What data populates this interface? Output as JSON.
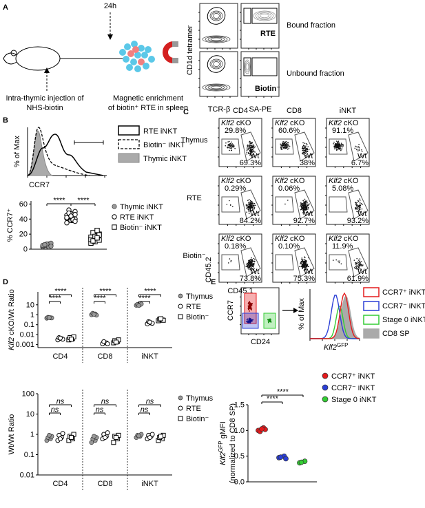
{
  "panel_a": {
    "letter": "A",
    "time": "24h",
    "injection": [
      "Intra-thymic injection of",
      "NHS-biotin"
    ],
    "enrichment": [
      "Magnetic enrichment",
      "of biotin⁺ RTE in spleen"
    ],
    "y_axis": "CD1d tetramer",
    "x_axes": [
      "TCR-β",
      "SA-PE"
    ],
    "gates": [
      "RTE",
      "Biotin⁻"
    ],
    "fractions": [
      "Bound fraction",
      "Unbound fraction"
    ]
  },
  "panel_b": {
    "letter": "B",
    "histogram": {
      "y_axis": "% of Max",
      "x_axis": "CCR7",
      "legend": [
        "RTE iNKT",
        "Biotin⁻ iNKT",
        "Thymic iNKT"
      ]
    },
    "dotplot": {
      "ylabel": "% CCR7⁺",
      "ylim": [
        0,
        64
      ],
      "yticks": [
        0,
        20,
        40,
        60
      ],
      "groups": [
        {
          "name": "Thymic iNKT",
          "marker": "filled",
          "color": "#999999",
          "values": [
            3,
            4,
            5,
            6,
            7,
            4,
            5,
            8,
            6,
            3,
            5,
            7,
            4,
            6
          ]
        },
        {
          "name": "RTE iNKT",
          "marker": "open-circle",
          "color": "#000000",
          "values": [
            35,
            38,
            40,
            42,
            44,
            45,
            47,
            50,
            52,
            38,
            41,
            43,
            46,
            48,
            39,
            42,
            44,
            37
          ]
        },
        {
          "name": "Biotin⁻ iNKT",
          "marker": "open-square",
          "color": "#000000",
          "values": [
            8,
            10,
            12,
            14,
            15,
            16,
            18,
            20,
            22,
            25,
            13,
            17,
            19,
            11,
            15
          ]
        }
      ],
      "sig": [
        "****",
        "****"
      ]
    }
  },
  "panel_c": {
    "letter": "C",
    "columns": [
      "CD4",
      "CD8",
      "iNKT"
    ],
    "rows": [
      "Thymus",
      "RTE",
      "Biotin⁻"
    ],
    "gate_name": "Klf2",
    "gate_suffix": " cKO",
    "wt": "Wt",
    "ko_pct": [
      [
        "29.8%",
        "60.6%",
        "91.1%"
      ],
      [
        "0.29%",
        "0.06%",
        "5.08%"
      ],
      [
        "0.18%",
        "0.10%",
        "11.9%"
      ]
    ],
    "wt_pct": [
      [
        "69.3%",
        "38%",
        "6.7%"
      ],
      [
        "84.2%",
        "92.7%",
        "93.2%"
      ],
      [
        "73.8%",
        "75.3%",
        "61.9%"
      ]
    ],
    "y_axis": "CD45.2",
    "x_axis": "CD45.1"
  },
  "panel_d": {
    "letter": "D",
    "categories": [
      "CD4",
      "CD8",
      "iNKT"
    ],
    "ratio": {
      "ylabel_italic": "Klf2",
      "ylabel_rest": " cKO/Wt Ratio",
      "log": true,
      "ylim": [
        0.0005,
        200
      ],
      "yticks": [
        10,
        1,
        0.1,
        0.01,
        0.001
      ],
      "series": [
        {
          "name": "Thymus",
          "marker": "filled",
          "color": "#999999",
          "values": [
            [
              0.45,
              0.5,
              0.55,
              0.48,
              0.52
            ],
            [
              1.0,
              1.2,
              1.4,
              0.9,
              1.1
            ],
            [
              9,
              10,
              11,
              12,
              8.5
            ]
          ]
        },
        {
          "name": "RTE",
          "marker": "open-circle",
          "color": "#000000",
          "values": [
            [
              0.003,
              0.004,
              0.005,
              0.0035,
              0.0045
            ],
            [
              0.0012,
              0.0015,
              0.002,
              0.0012
            ],
            [
              0.12,
              0.15,
              0.2,
              0.14,
              0.18
            ]
          ]
        },
        {
          "name": "Biotin⁻",
          "marker": "open-square",
          "color": "#000000",
          "values": [
            [
              0.003,
              0.004,
              0.005,
              0.006,
              0.0035
            ],
            [
              0.0015,
              0.002,
              0.0025,
              0.003,
              0.0018
            ],
            [
              0.25,
              0.3,
              0.35,
              0.28,
              0.4
            ]
          ]
        }
      ],
      "sig": [
        "****",
        "****",
        "****",
        "****",
        "****",
        "****"
      ]
    },
    "wt": {
      "ylabel": "Wt/Wt Ratio",
      "log": true,
      "ylim": [
        0.01,
        100
      ],
      "yticks": [
        100,
        10,
        1,
        0.1,
        0.01
      ],
      "series": [
        {
          "name": "Thymus",
          "marker": "filled",
          "color": "#999999",
          "values": [
            [
              0.5,
              0.6,
              0.7,
              0.8,
              0.9
            ],
            [
              0.4,
              0.5,
              0.6,
              0.7,
              0.8
            ],
            [
              0.7,
              0.8,
              0.9,
              1.0,
              0.85
            ]
          ]
        },
        {
          "name": "RTE",
          "marker": "open-circle",
          "color": "#000000",
          "values": [
            [
              0.5,
              0.7,
              0.9,
              1.1,
              0.6
            ],
            [
              0.6,
              0.8,
              1.0,
              1.2,
              0.7
            ],
            [
              0.6,
              0.8,
              0.9,
              1.0,
              0.7
            ]
          ]
        },
        {
          "name": "Biotin⁻",
          "marker": "open-square",
          "color": "#000000",
          "values": [
            [
              0.5,
              0.6,
              0.8,
              1.0,
              0.7
            ],
            [
              0.4,
              0.6,
              0.8,
              0.9,
              0.7
            ],
            [
              0.5,
              0.6,
              0.7,
              0.9,
              0.8
            ]
          ]
        }
      ],
      "sig": [
        "ns",
        "ns",
        "ns",
        "ns",
        "ns",
        "ns"
      ]
    }
  },
  "panel_e": {
    "letter": "E",
    "flow": {
      "y_axis": "CCR7",
      "x_axis": "CD24"
    },
    "histogram": {
      "y_axis": "% of Max",
      "x_label": "Klf2",
      "x_sup": "GFP",
      "legend": [
        {
          "name": "CCR7⁺ iNKT",
          "color": "#e41a1c",
          "filled": false
        },
        {
          "name": "CCR7⁻ iNKT",
          "color": "#2b3fd6",
          "filled": false
        },
        {
          "name": "Stage 0 iNKT",
          "color": "#33cc33",
          "filled": false
        },
        {
          "name": "CD8 SP",
          "color": "#aaaaaa",
          "filled": true
        }
      ]
    },
    "dotplot": {
      "ylabel_italic": "Klf2",
      "ylabel_sup": "GFP",
      "ylabel_rest": " gMFI",
      "ylabel2": "(normalized to CD8 SP)",
      "ylim": [
        0,
        1.5
      ],
      "yticks": [
        {
          "value": 0,
          "label": "0.0"
        },
        {
          "value": 0.5,
          "label": "0.5"
        },
        {
          "value": 1,
          "label": "1.0"
        },
        {
          "value": 1.5,
          "label": "1.5"
        }
      ],
      "series": [
        {
          "name": "CCR7⁺ iNKT",
          "marker": "filled",
          "color": "#e41a1c",
          "values": [
            1.0,
            1.05,
            0.98,
            1.02,
            1.03
          ]
        },
        {
          "name": "CCR7⁻ iNKT",
          "marker": "filled",
          "color": "#2b3fd6",
          "values": [
            0.47,
            0.5,
            0.48,
            0.45
          ]
        },
        {
          "name": "Stage 0 iNKT",
          "marker": "filled",
          "color": "#33cc33",
          "values": [
            0.37,
            0.4,
            0.38
          ]
        }
      ],
      "sig": [
        "****",
        "****"
      ]
    }
  }
}
